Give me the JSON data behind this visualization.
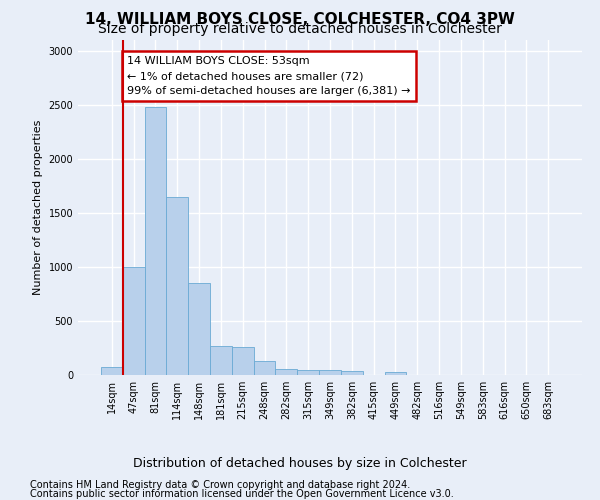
{
  "title": "14, WILLIAM BOYS CLOSE, COLCHESTER, CO4 3PW",
  "subtitle": "Size of property relative to detached houses in Colchester",
  "xlabel": "Distribution of detached houses by size in Colchester",
  "ylabel": "Number of detached properties",
  "categories": [
    "14sqm",
    "47sqm",
    "81sqm",
    "114sqm",
    "148sqm",
    "181sqm",
    "215sqm",
    "248sqm",
    "282sqm",
    "315sqm",
    "349sqm",
    "382sqm",
    "415sqm",
    "449sqm",
    "482sqm",
    "516sqm",
    "549sqm",
    "583sqm",
    "616sqm",
    "650sqm",
    "683sqm"
  ],
  "values": [
    72,
    1000,
    2480,
    1650,
    850,
    270,
    260,
    130,
    60,
    50,
    45,
    35,
    0,
    30,
    0,
    0,
    0,
    0,
    0,
    0,
    0
  ],
  "bar_color": "#b8d0eb",
  "bar_edgecolor": "#6aaad4",
  "annotation_text": "14 WILLIAM BOYS CLOSE: 53sqm\n← 1% of detached houses are smaller (72)\n99% of semi-detached houses are larger (6,381) →",
  "annotation_box_color": "white",
  "annotation_box_edgecolor": "#cc0000",
  "vline_color": "#cc0000",
  "ylim": [
    0,
    3100
  ],
  "yticks": [
    0,
    500,
    1000,
    1500,
    2000,
    2500,
    3000
  ],
  "footer1": "Contains HM Land Registry data © Crown copyright and database right 2024.",
  "footer2": "Contains public sector information licensed under the Open Government Licence v3.0.",
  "bg_color": "#e8eef8",
  "plot_bg_color": "#e8eef8",
  "grid_color": "white",
  "title_fontsize": 11,
  "subtitle_fontsize": 10,
  "xlabel_fontsize": 9,
  "ylabel_fontsize": 8,
  "tick_fontsize": 7,
  "annotation_fontsize": 8,
  "footer_fontsize": 7
}
